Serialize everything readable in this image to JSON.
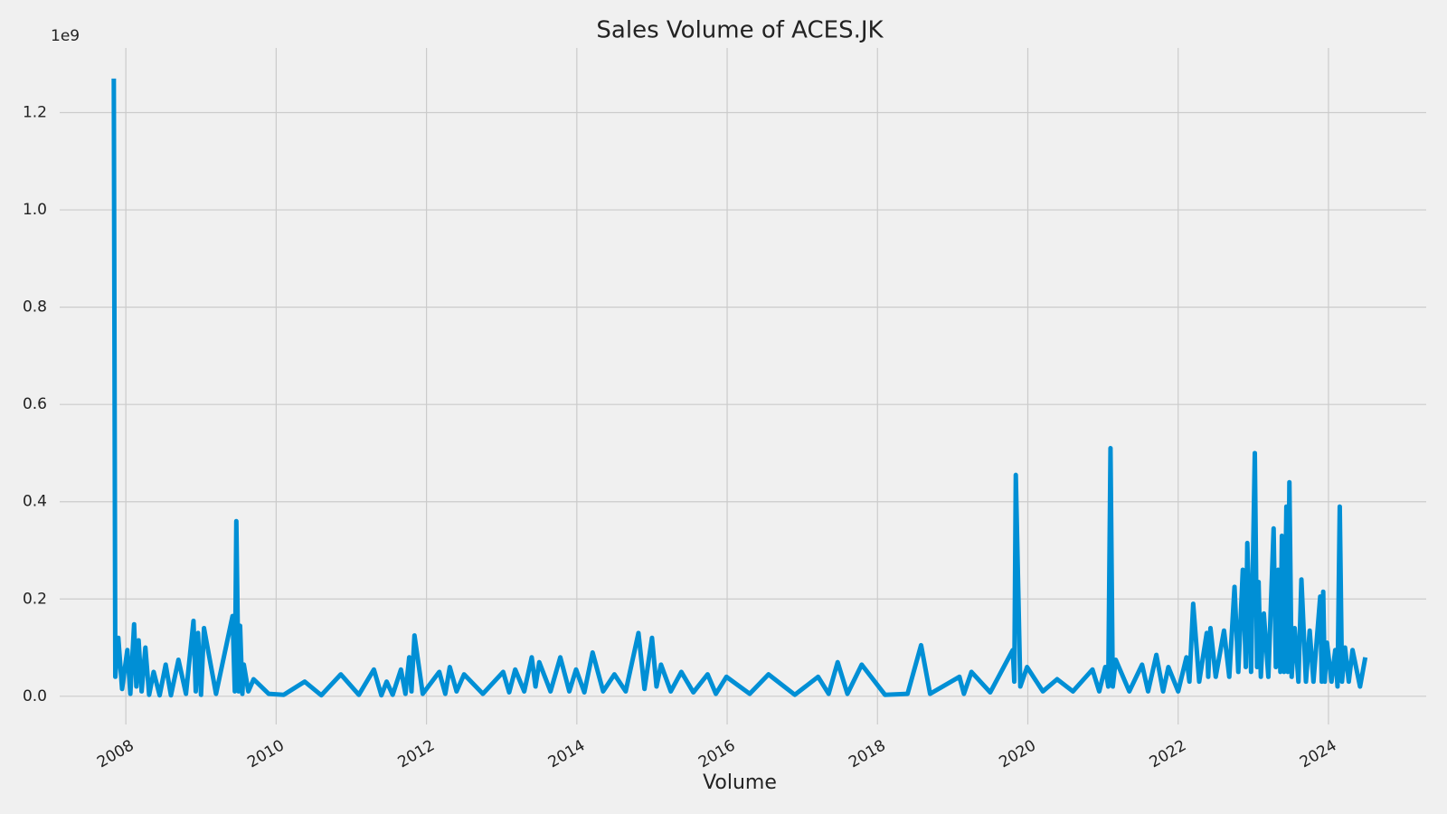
{
  "chart_data": {
    "type": "line",
    "title": "Sales Volume of ACES.JK",
    "xlabel": "Volume",
    "y_offset_label": "1e9",
    "xlim": [
      2007.12,
      2025.3
    ],
    "xticks": [
      2008,
      2010,
      2012,
      2014,
      2016,
      2018,
      2020,
      2022,
      2024
    ],
    "ylim": [
      -0.058,
      1.333
    ],
    "yticks": [
      {
        "value": 0,
        "label": "0.0"
      },
      0.2,
      0.4,
      0.6,
      0.8,
      {
        "value": 1,
        "label": "1.0"
      },
      1.2
    ],
    "grid": true,
    "x": [
      2007.84,
      2007.86,
      2007.9,
      2007.95,
      2008.02,
      2008.06,
      2008.11,
      2008.14,
      2008.17,
      2008.21,
      2008.26,
      2008.31,
      2008.37,
      2008.45,
      2008.53,
      2008.6,
      2008.7,
      2008.8,
      2008.9,
      2008.93,
      2008.96,
      2009.0,
      2009.04,
      2009.2,
      2009.42,
      2009.45,
      2009.47,
      2009.5,
      2009.52,
      2009.55,
      2009.57,
      2009.63,
      2009.7,
      2009.9,
      2010.1,
      2010.38,
      2010.6,
      2010.86,
      2011.1,
      2011.3,
      2011.4,
      2011.47,
      2011.55,
      2011.66,
      2011.72,
      2011.77,
      2011.8,
      2011.84,
      2011.95,
      2012.17,
      2012.25,
      2012.31,
      2012.4,
      2012.5,
      2012.75,
      2013.02,
      2013.1,
      2013.18,
      2013.3,
      2013.4,
      2013.45,
      2013.5,
      2013.65,
      2013.78,
      2013.9,
      2013.99,
      2014.1,
      2014.21,
      2014.35,
      2014.5,
      2014.65,
      2014.82,
      2014.9,
      2015.0,
      2015.06,
      2015.12,
      2015.25,
      2015.39,
      2015.55,
      2015.74,
      2015.85,
      2015.99,
      2016.3,
      2016.55,
      2016.9,
      2017.21,
      2017.35,
      2017.47,
      2017.6,
      2017.79,
      2018.1,
      2018.4,
      2018.58,
      2018.7,
      2019.09,
      2019.15,
      2019.25,
      2019.5,
      2019.8,
      2019.82,
      2019.84,
      2019.9,
      2019.99,
      2020.2,
      2020.39,
      2020.6,
      2020.86,
      2020.95,
      2021.03,
      2021.07,
      2021.1,
      2021.13,
      2021.17,
      2021.35,
      2021.52,
      2021.6,
      2021.71,
      2021.8,
      2021.87,
      2022.0,
      2022.11,
      2022.15,
      2022.2,
      2022.28,
      2022.38,
      2022.4,
      2022.43,
      2022.5,
      2022.61,
      2022.68,
      2022.75,
      2022.8,
      2022.86,
      2022.9,
      2022.92,
      2022.97,
      2023.02,
      2023.05,
      2023.07,
      2023.1,
      2023.14,
      2023.2,
      2023.27,
      2023.3,
      2023.33,
      2023.36,
      2023.38,
      2023.41,
      2023.44,
      2023.46,
      2023.48,
      2023.51,
      2023.55,
      2023.6,
      2023.64,
      2023.7,
      2023.75,
      2023.8,
      2023.89,
      2023.91,
      2023.93,
      2023.95,
      2023.98,
      2024.04,
      2024.09,
      2024.12,
      2024.15,
      2024.18,
      2024.22,
      2024.27,
      2024.32,
      2024.42,
      2024.49
    ],
    "series": [
      {
        "name": "Volume",
        "color": "#008fd5",
        "values": [
          1.27,
          0.04,
          0.12,
          0.015,
          0.095,
          0.005,
          0.148,
          0.02,
          0.115,
          0.01,
          0.1,
          0.003,
          0.05,
          0.002,
          0.065,
          0.002,
          0.075,
          0.005,
          0.155,
          0.01,
          0.13,
          0.003,
          0.14,
          0.005,
          0.165,
          0.01,
          0.36,
          0.01,
          0.145,
          0.005,
          0.065,
          0.01,
          0.035,
          0.005,
          0.003,
          0.03,
          0.002,
          0.045,
          0.003,
          0.055,
          0.002,
          0.03,
          0.003,
          0.055,
          0.005,
          0.08,
          0.01,
          0.125,
          0.005,
          0.05,
          0.005,
          0.06,
          0.01,
          0.045,
          0.005,
          0.05,
          0.008,
          0.055,
          0.01,
          0.08,
          0.02,
          0.07,
          0.01,
          0.08,
          0.01,
          0.055,
          0.008,
          0.09,
          0.01,
          0.045,
          0.01,
          0.13,
          0.015,
          0.12,
          0.02,
          0.065,
          0.01,
          0.05,
          0.008,
          0.045,
          0.005,
          0.04,
          0.005,
          0.045,
          0.003,
          0.04,
          0.005,
          0.07,
          0.005,
          0.065,
          0.003,
          0.005,
          0.105,
          0.005,
          0.04,
          0.005,
          0.05,
          0.008,
          0.095,
          0.03,
          0.455,
          0.02,
          0.06,
          0.01,
          0.035,
          0.01,
          0.055,
          0.01,
          0.06,
          0.02,
          0.51,
          0.02,
          0.075,
          0.01,
          0.065,
          0.01,
          0.085,
          0.01,
          0.06,
          0.01,
          0.08,
          0.03,
          0.19,
          0.03,
          0.13,
          0.04,
          0.14,
          0.04,
          0.135,
          0.04,
          0.225,
          0.05,
          0.26,
          0.06,
          0.315,
          0.05,
          0.5,
          0.06,
          0.235,
          0.04,
          0.17,
          0.04,
          0.345,
          0.06,
          0.26,
          0.05,
          0.33,
          0.05,
          0.39,
          0.05,
          0.44,
          0.04,
          0.14,
          0.03,
          0.24,
          0.03,
          0.135,
          0.03,
          0.205,
          0.03,
          0.215,
          0.03,
          0.11,
          0.03,
          0.095,
          0.02,
          0.39,
          0.03,
          0.1,
          0.03,
          0.095,
          0.02,
          0.08
        ]
      }
    ]
  }
}
